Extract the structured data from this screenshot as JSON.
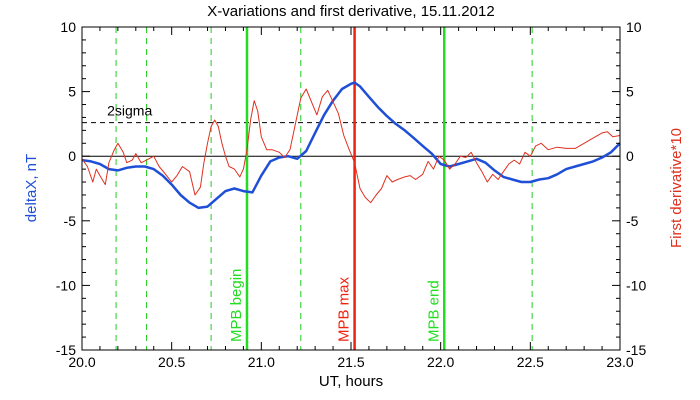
{
  "chart_data": {
    "type": "line",
    "title": "X-variations and first derivative, 15.11.2012",
    "xlabel": "UT, hours",
    "ylabel_left": "deltaX, nT",
    "ylabel_right": "First derivative*10",
    "xlim": [
      20.0,
      23.0
    ],
    "ylim": [
      -15,
      10
    ],
    "x_ticks": [
      20.0,
      20.5,
      21.0,
      21.5,
      22.0,
      22.5,
      23.0
    ],
    "x_tick_labels": [
      "20.0",
      "20.5",
      "21.0",
      "21.5",
      "22.0",
      "22.5",
      "23.0"
    ],
    "y_ticks": [
      10,
      5,
      0,
      -5,
      -10,
      -15
    ],
    "y_tick_labels": [
      "10",
      "5",
      "0",
      "-5",
      "-10",
      "-15"
    ],
    "sigma_label": "2sigma",
    "sigma_level": 2.6,
    "zero_line": 0,
    "colors": {
      "deltaX": "#1f4fd6",
      "derivative": "#e0301e",
      "mpb_green": "#22dd22",
      "mpb_red": "#ee2211",
      "dashed_green": "#22cc22"
    },
    "vertical_lines": [
      {
        "x": 20.92,
        "label": "MPB begin",
        "color": "#22dd22"
      },
      {
        "x": 21.52,
        "label": "MPB max",
        "color": "#ee2211"
      },
      {
        "x": 22.02,
        "label": "MPB end",
        "color": "#22dd22"
      }
    ],
    "dashed_lines_x": [
      20.19,
      20.36,
      20.72,
      21.22,
      22.51
    ],
    "series": [
      {
        "key": "deltaX",
        "axis": "left",
        "x": [
          20.0,
          20.05,
          20.1,
          20.15,
          20.2,
          20.25,
          20.3,
          20.35,
          20.4,
          20.45,
          20.5,
          20.55,
          20.6,
          20.65,
          20.7,
          20.75,
          20.8,
          20.85,
          20.9,
          20.95,
          21.0,
          21.05,
          21.1,
          21.15,
          21.2,
          21.25,
          21.3,
          21.35,
          21.4,
          21.45,
          21.5,
          21.52,
          21.55,
          21.6,
          21.65,
          21.7,
          21.75,
          21.8,
          21.85,
          21.9,
          21.95,
          22.0,
          22.05,
          22.1,
          22.15,
          22.2,
          22.25,
          22.3,
          22.35,
          22.4,
          22.45,
          22.5,
          22.55,
          22.6,
          22.65,
          22.7,
          22.75,
          22.8,
          22.85,
          22.9,
          22.95,
          23.0
        ],
        "y": [
          -0.3,
          -0.4,
          -0.6,
          -1.0,
          -1.1,
          -0.9,
          -0.8,
          -0.8,
          -1.0,
          -1.5,
          -2.2,
          -3.0,
          -3.6,
          -4.0,
          -3.9,
          -3.3,
          -2.7,
          -2.5,
          -2.7,
          -2.8,
          -1.5,
          -0.4,
          -0.1,
          0.0,
          -0.2,
          0.4,
          1.8,
          3.2,
          4.3,
          5.2,
          5.6,
          5.7,
          5.4,
          4.6,
          3.8,
          3.1,
          2.5,
          2.0,
          1.4,
          0.8,
          0.2,
          -0.6,
          -0.8,
          -0.6,
          -0.4,
          -0.2,
          -0.5,
          -1.1,
          -1.6,
          -1.8,
          -2.0,
          -2.0,
          -1.8,
          -1.7,
          -1.4,
          -1.0,
          -0.8,
          -0.6,
          -0.4,
          -0.1,
          0.3,
          1.0
        ]
      },
      {
        "key": "derivative",
        "axis": "right",
        "x": [
          20.0,
          20.03,
          20.06,
          20.08,
          20.1,
          20.13,
          20.15,
          20.18,
          20.2,
          20.23,
          20.25,
          20.28,
          20.3,
          20.33,
          20.36,
          20.4,
          20.43,
          20.46,
          20.5,
          20.53,
          20.56,
          20.6,
          20.63,
          20.66,
          20.68,
          20.7,
          20.72,
          20.74,
          20.76,
          20.78,
          20.8,
          20.82,
          20.85,
          20.88,
          20.9,
          20.92,
          20.94,
          20.96,
          20.98,
          21.0,
          21.03,
          21.06,
          21.1,
          21.13,
          21.16,
          21.19,
          21.22,
          21.25,
          21.28,
          21.31,
          21.34,
          21.37,
          21.4,
          21.43,
          21.46,
          21.49,
          21.52,
          21.55,
          21.58,
          21.61,
          21.64,
          21.67,
          21.7,
          21.73,
          21.76,
          21.8,
          21.83,
          21.86,
          21.9,
          21.93,
          21.96,
          21.99,
          22.02,
          22.05,
          22.08,
          22.11,
          22.14,
          22.17,
          22.2,
          22.23,
          22.26,
          22.29,
          22.32,
          22.35,
          22.38,
          22.41,
          22.44,
          22.47,
          22.5,
          22.53,
          22.56,
          22.6,
          22.65,
          22.7,
          22.75,
          22.8,
          22.85,
          22.9,
          22.93,
          22.96,
          23.0
        ],
        "y": [
          -0.2,
          -0.8,
          -2.0,
          -1.0,
          -1.5,
          -2.2,
          -0.5,
          0.5,
          1.0,
          0.3,
          -0.5,
          -0.3,
          0.2,
          -0.5,
          -0.3,
          0.0,
          -0.8,
          -1.3,
          -2.0,
          -1.5,
          -0.8,
          -1.2,
          -3.0,
          -2.4,
          -0.5,
          1.0,
          2.3,
          2.8,
          2.3,
          1.0,
          0.0,
          -0.8,
          -1.0,
          -1.6,
          -1.0,
          0.5,
          2.8,
          4.3,
          3.5,
          1.5,
          0.5,
          0.5,
          0.3,
          -0.1,
          0.5,
          2.5,
          4.5,
          5.2,
          4.2,
          3.2,
          4.6,
          5.1,
          4.2,
          3.3,
          1.6,
          0.5,
          -0.5,
          -2.5,
          -3.2,
          -3.6,
          -3.0,
          -2.5,
          -1.5,
          -2.0,
          -1.8,
          -1.6,
          -1.5,
          -1.8,
          -1.4,
          -0.4,
          -1.0,
          0.0,
          -0.3,
          -1.0,
          -0.6,
          0.0,
          -0.1,
          0.3,
          -0.5,
          -1.2,
          -2.0,
          -1.4,
          -1.8,
          -1.2,
          -0.6,
          -0.3,
          -0.6,
          0.3,
          0.0,
          0.8,
          1.0,
          0.5,
          0.7,
          0.6,
          0.6,
          1.0,
          1.4,
          1.8,
          1.9,
          1.5,
          1.6
        ]
      }
    ]
  }
}
